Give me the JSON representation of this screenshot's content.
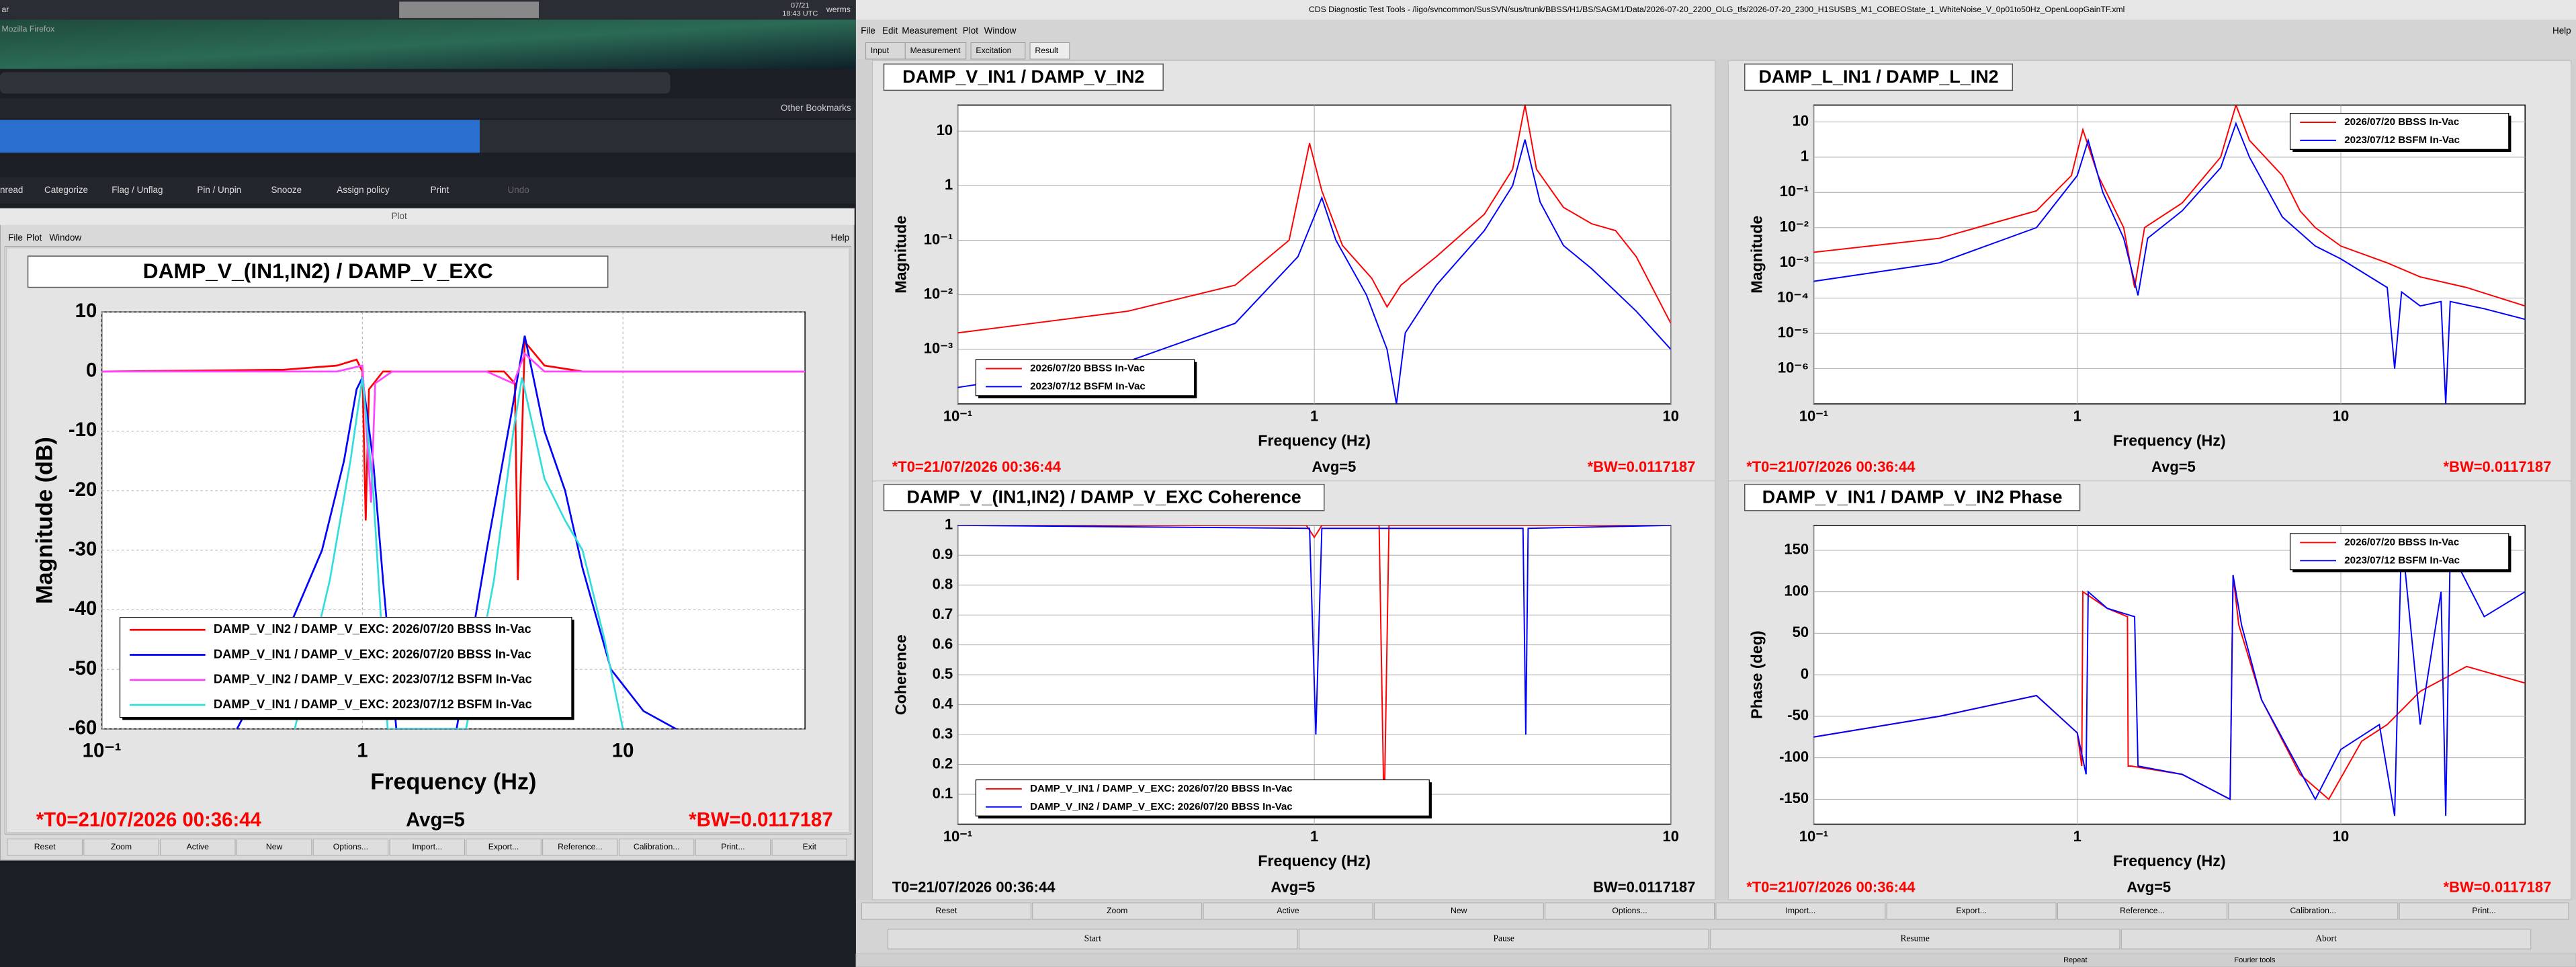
{
  "taskbar": {
    "left_label": "ar",
    "date": "07/21",
    "time": "18:43 UTC",
    "user": "werms"
  },
  "browser": {
    "title": "Mozilla Firefox",
    "bookmarks": "Other Bookmarks",
    "toolbar": [
      "nread",
      "Categorize",
      "Flag / Unflag",
      "Pin / Unpin",
      "Snooze",
      "Assign policy",
      "Print",
      "Undo"
    ]
  },
  "plot_window": {
    "title": "Plot",
    "menu": [
      "File",
      "Plot",
      "Window"
    ],
    "help": "Help",
    "chart_data": {
      "type": "line",
      "title": "DAMP_V_(IN1,IN2) / DAMP_V_EXC",
      "xlabel": "Frequency (Hz)",
      "ylabel": "Magnitude (dB)",
      "xscale": "log",
      "yscale": "linear",
      "grid": true,
      "legend": "lower left",
      "xlim": [
        0.1,
        50
      ],
      "ylim": [
        -60,
        10
      ],
      "xticks": [
        {
          "value": 0.1,
          "label": "10⁻¹"
        },
        1,
        10
      ],
      "yticks": [
        10,
        0,
        -10,
        -20,
        -30,
        -40,
        -50,
        -60
      ],
      "series": [
        {
          "name": "DAMP_V_IN2 / DAMP_V_EXC: 2026/07/20 BBSS In-Vac",
          "color": "#ff0000",
          "x": [
            0.1,
            0.5,
            0.8,
            0.95,
            1.0,
            1.03,
            1.06,
            1.2,
            2,
            3.5,
            3.85,
            3.95,
            4.2,
            5,
            7,
            10,
            20,
            50
          ],
          "values": [
            0,
            0.3,
            1,
            2,
            0,
            -25,
            -3,
            0,
            0,
            0,
            -2,
            -35,
            5,
            1,
            0,
            0,
            0,
            0
          ]
        },
        {
          "name": "DAMP_V_IN1 / DAMP_V_EXC: 2026/07/20 BBSS In-Vac",
          "color": "#0000ff",
          "x": [
            0.33,
            0.5,
            0.7,
            0.85,
            0.95,
            1.0,
            1.1,
            1.2,
            1.35,
            2.3,
            3,
            3.7,
            4.2,
            5,
            6,
            7,
            9,
            12,
            16
          ],
          "values": [
            -60,
            -45,
            -30,
            -15,
            -3,
            -1,
            -15,
            -35,
            -60,
            -60,
            -30,
            -8,
            6,
            -10,
            -20,
            -33,
            -50,
            -57,
            -60
          ]
        },
        {
          "name": "DAMP_V_IN2 / DAMP_V_EXC: 2023/07/12 BSFM In-Vac",
          "color": "#ff44ff",
          "x": [
            0.1,
            0.8,
            1.0,
            1.08,
            1.12,
            1.3,
            3,
            3.8,
            4.2,
            5,
            8,
            50
          ],
          "values": [
            0,
            0,
            1,
            -22,
            -2,
            0,
            0,
            -2,
            3,
            0,
            0,
            0
          ]
        },
        {
          "name": "DAMP_V_IN1 / DAMP_V_EXC: 2023/07/12 BSFM In-Vac",
          "color": "#33dddd",
          "x": [
            0.55,
            0.75,
            0.9,
            1.0,
            1.1,
            1.25,
            2.5,
            3.2,
            3.8,
            4.1,
            5,
            6,
            7,
            8.5,
            10
          ],
          "values": [
            -60,
            -35,
            -15,
            -1,
            -20,
            -60,
            -60,
            -35,
            -10,
            -1,
            -18,
            -25,
            -30,
            -45,
            -60
          ]
        }
      ]
    },
    "footer": {
      "t0": "*T0=21/07/2026 00:36:44",
      "avg": "Avg=5",
      "bw": "*BW=0.0117187",
      "color": "#ff0000"
    },
    "buttons": [
      "Reset",
      "Zoom",
      "Active",
      "New",
      "Options...",
      "Import...",
      "Export...",
      "Reference...",
      "Calibration...",
      "Print...",
      "Exit"
    ]
  },
  "dtt": {
    "title": "CDS Diagnostic Test Tools - /ligo/svncommon/SusSVN/sus/trunk/BBSS/H1/BS/SAGM1/Data/2026-07-20_2200_OLG_tfs/2026-07-20_2300_H1SUSBS_M1_COBEOState_1_WhiteNoise_V_0p01to50Hz_OpenLoopGainTF.xml",
    "menu": [
      "File",
      "Edit",
      "Measurement",
      "Plot",
      "Window"
    ],
    "help": "Help",
    "tabs": [
      "Input",
      "Measurement",
      "Excitation",
      "Result"
    ],
    "panels": [
      {
        "chart_data": {
          "type": "line",
          "title": "DAMP_V_IN1 / DAMP_V_IN2",
          "xlabel": "Frequency (Hz)",
          "ylabel": "Magnitude",
          "xscale": "log",
          "yscale": "log",
          "grid": true,
          "legend": "lower left",
          "xlim": [
            0.1,
            10
          ],
          "ylim": [
            0.0001,
            30
          ],
          "xticks": [
            {
              "value": 0.1,
              "label": "10⁻¹"
            },
            1,
            10
          ],
          "yticks": [
            10,
            1,
            {
              "value": 0.1,
              "label": "10⁻¹"
            },
            {
              "value": 0.01,
              "label": "10⁻²"
            },
            {
              "value": 0.001,
              "label": "10⁻³"
            }
          ],
          "series": [
            {
              "name": "2026/07/20 BBSS In-Vac",
              "color": "#ff0000",
              "x": [
                0.1,
                0.3,
                0.6,
                0.85,
                0.97,
                1.05,
                1.2,
                1.45,
                1.6,
                1.75,
                2.2,
                3,
                3.6,
                3.9,
                4.2,
                5,
                6,
                7,
                8,
                10
              ],
              "values": [
                0.002,
                0.005,
                0.015,
                0.1,
                6,
                0.8,
                0.08,
                0.02,
                0.006,
                0.015,
                0.05,
                0.3,
                2,
                30,
                2,
                0.4,
                0.2,
                0.15,
                0.05,
                0.003
              ]
            },
            {
              "name": "2023/07/12 BSFM In-Vac",
              "color": "#0000ff",
              "x": [
                0.1,
                0.3,
                0.6,
                0.9,
                1.05,
                1.15,
                1.4,
                1.6,
                1.7,
                1.8,
                2.2,
                3,
                3.6,
                3.9,
                4.3,
                5,
                6,
                8,
                10
              ],
              "values": [
                0.0002,
                0.0006,
                0.003,
                0.05,
                0.6,
                0.1,
                0.01,
                0.001,
                0.0001,
                0.002,
                0.015,
                0.15,
                1,
                7,
                0.5,
                0.08,
                0.03,
                0.005,
                0.001
              ]
            }
          ]
        },
        "footer": {
          "t0": "*T0=21/07/2026 00:36:44",
          "avg": "Avg=5",
          "bw": "*BW=0.0117187",
          "color": "#ff0000"
        }
      },
      {
        "chart_data": {
          "type": "line",
          "title": "DAMP_L_IN1 / DAMP_L_IN2",
          "xlabel": "Frequency (Hz)",
          "ylabel": "Magnitude",
          "xscale": "log",
          "yscale": "log",
          "grid": true,
          "legend": "upper right",
          "xlim": [
            0.1,
            50
          ],
          "ylim": [
            1e-07,
            30
          ],
          "xticks": [
            {
              "value": 0.1,
              "label": "10⁻¹"
            },
            1,
            10
          ],
          "yticks": [
            10,
            1,
            {
              "value": 0.1,
              "label": "10⁻¹"
            },
            {
              "value": 0.01,
              "label": "10⁻²"
            },
            {
              "value": 0.001,
              "label": "10⁻³"
            },
            {
              "value": 0.0001,
              "label": "10⁻⁴"
            },
            {
              "value": 1e-05,
              "label": "10⁻⁵"
            },
            {
              "value": 1e-06,
              "label": "10⁻⁶"
            }
          ],
          "series": [
            {
              "name": "2026/07/20 BBSS In-Vac",
              "color": "#ff0000",
              "x": [
                0.1,
                0.3,
                0.7,
                0.95,
                1.05,
                1.2,
                1.5,
                1.65,
                1.8,
                2.5,
                3.5,
                4.0,
                4.5,
                6,
                7,
                8,
                10,
                15,
                20,
                30,
                50
              ],
              "values": [
                0.002,
                0.005,
                0.03,
                0.3,
                6,
                0.3,
                0.01,
                0.0002,
                0.01,
                0.05,
                1,
                30,
                3,
                0.3,
                0.03,
                0.01,
                0.003,
                0.001,
                0.0004,
                0.0002,
                6e-05
              ]
            },
            {
              "name": "2023/07/12 BSFM In-Vac",
              "color": "#0000ff",
              "x": [
                0.1,
                0.3,
                0.7,
                1.0,
                1.1,
                1.25,
                1.5,
                1.7,
                1.85,
                2.5,
                3.5,
                4.0,
                4.5,
                6,
                8,
                10,
                15,
                16,
                17,
                20,
                24,
                25,
                26,
                35,
                50
              ],
              "values": [
                0.0003,
                0.001,
                0.01,
                0.3,
                3,
                0.1,
                0.005,
                0.00012,
                0.005,
                0.03,
                0.5,
                9,
                1,
                0.02,
                0.003,
                0.0013,
                0.0002,
                1e-06,
                0.00015,
                6e-05,
                8e-05,
                1e-07,
                8e-05,
                5e-05,
                2.5e-05
              ]
            }
          ]
        },
        "footer": {
          "t0": "*T0=21/07/2026 00:36:44",
          "avg": "Avg=5",
          "bw": "*BW=0.0117187",
          "color": "#ff0000"
        }
      },
      {
        "chart_data": {
          "type": "line",
          "title": "DAMP_V_(IN1,IN2) / DAMP_V_EXC Coherence",
          "xlabel": "Frequency (Hz)",
          "ylabel": "Coherence",
          "xscale": "log",
          "yscale": "linear",
          "grid": true,
          "legend": "lower left",
          "xlim": [
            0.1,
            10
          ],
          "ylim": [
            0,
            1
          ],
          "xticks": [
            {
              "value": 0.1,
              "label": "10⁻¹"
            },
            1,
            10
          ],
          "yticks": [
            1,
            0.9,
            0.8,
            0.7,
            0.6,
            0.5,
            0.4,
            0.3,
            0.2,
            0.1
          ],
          "series": [
            {
              "name": "DAMP_V_IN1 / DAMP_V_EXC: 2026/07/20 BBSS In-Vac",
              "color": "#ff0000",
              "x": [
                0.1,
                0.95,
                1.0,
                1.05,
                1.52,
                1.57,
                1.62,
                10
              ],
              "values": [
                1,
                1,
                0.96,
                1,
                1,
                0.02,
                1,
                1
              ]
            },
            {
              "name": "DAMP_V_IN2 / DAMP_V_EXC: 2026/07/20 BBSS In-Vac",
              "color": "#0000ff",
              "x": [
                0.1,
                0.97,
                1.01,
                1.05,
                3.85,
                3.92,
                3.98,
                10
              ],
              "values": [
                1,
                0.99,
                0.3,
                0.99,
                0.99,
                0.3,
                0.99,
                1
              ]
            }
          ]
        },
        "footer": {
          "t0": "T0=21/07/2026 00:36:44",
          "avg": "Avg=5",
          "bw": "BW=0.0117187",
          "color": "#000000"
        }
      },
      {
        "chart_data": {
          "type": "line",
          "title": "DAMP_V_IN1 / DAMP_V_IN2 Phase",
          "xlabel": "Frequency (Hz)",
          "ylabel": "Phase (deg)",
          "xscale": "log",
          "yscale": "linear",
          "grid": true,
          "legend": "upper right",
          "xlim": [
            0.1,
            50
          ],
          "ylim": [
            -180,
            180
          ],
          "xticks": [
            {
              "value": 0.1,
              "label": "10⁻¹"
            },
            1,
            10
          ],
          "yticks": [
            150,
            100,
            50,
            0,
            -50,
            -100,
            -150
          ],
          "series": [
            {
              "name": "2026/07/20 BBSS In-Vac",
              "color": "#ff0000",
              "x": [
                0.1,
                0.3,
                0.7,
                1.0,
                1.04,
                1.05,
                1.3,
                1.55,
                1.56,
                1.6,
                2.5,
                3.8,
                3.9,
                4.1,
                5,
                7,
                9,
                12,
                15,
                20,
                30,
                50
              ],
              "values": [
                -75,
                -50,
                -25,
                -70,
                -110,
                100,
                80,
                70,
                -110,
                -110,
                -120,
                -150,
                120,
                60,
                -30,
                -120,
                -150,
                -80,
                -60,
                -20,
                10,
                -10
              ]
            },
            {
              "name": "2023/07/12 BSFM In-Vac",
              "color": "#0000ff",
              "x": [
                0.1,
                0.3,
                0.7,
                1.0,
                1.08,
                1.1,
                1.3,
                1.65,
                1.7,
                2.5,
                3.8,
                3.9,
                4.2,
                5,
                8,
                10,
                14,
                16,
                17,
                20,
                24,
                25,
                26,
                35,
                50
              ],
              "values": [
                -75,
                -50,
                -25,
                -70,
                -120,
                100,
                80,
                70,
                -110,
                -120,
                -150,
                120,
                60,
                -30,
                -150,
                -90,
                -60,
                -170,
                170,
                -60,
                100,
                -170,
                150,
                70,
                100
              ]
            }
          ]
        },
        "footer": {
          "t0": "*T0=21/07/2026 00:36:44",
          "avg": "Avg=5",
          "bw": "*BW=0.0117187",
          "color": "#ff0000"
        }
      }
    ],
    "buttons": [
      "Reset",
      "Zoom",
      "Active",
      "New",
      "Options...",
      "Import...",
      "Export...",
      "Reference...",
      "Calibration...",
      "Print..."
    ],
    "controls": [
      "Start",
      "Pause",
      "Resume",
      "Abort"
    ],
    "status": [
      "Repeat",
      "Fourier tools"
    ]
  }
}
